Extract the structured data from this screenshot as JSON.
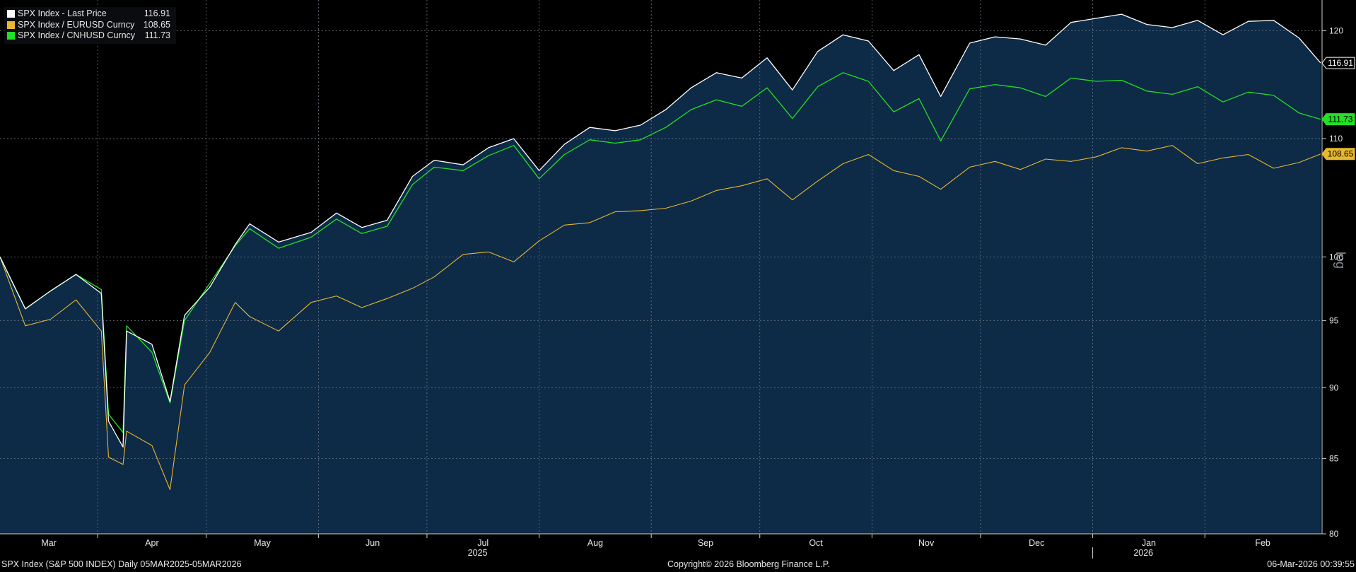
{
  "legend": [
    {
      "label": "SPX Index - Last Price",
      "value": "116.91",
      "color": "#ffffff"
    },
    {
      "label": "SPX Index / EURUSD Curncy",
      "value": "108.65",
      "color": "#e8b830"
    },
    {
      "label": "SPX Index / CNHUSD Curncy",
      "value": "111.73",
      "color": "#22e022"
    }
  ],
  "footer": {
    "left": "SPX Index (S&P 500 INDEX) Daily 05MAR2025-05MAR2026",
    "center": "Copyright© 2026 Bloomberg Finance L.P.",
    "right": "06-Mar-2026 00:39:55"
  },
  "colors": {
    "background": "#000000",
    "area_fill": "#0d2a47",
    "grid": "#6f7a86",
    "white_series": "#ffffff",
    "eur_series": "#e8b830",
    "cnh_series": "#22e022"
  },
  "chart_data": {
    "type": "line",
    "yscale": "log",
    "ylabel": "log",
    "ylim": [
      80,
      123
    ],
    "xlim": [
      "2025-03-05",
      "2026-03-05"
    ],
    "yticks": [
      80,
      85,
      90,
      95,
      100,
      110,
      120
    ],
    "x_month_ticks": [
      "Mar",
      "Apr",
      "May",
      "Jun",
      "Jul",
      "Aug",
      "Sep",
      "Oct",
      "Nov",
      "Dec",
      "Jan",
      "Feb"
    ],
    "x_month_dates": [
      "2025-03-01",
      "2025-04-01",
      "2025-05-01",
      "2025-06-01",
      "2025-07-01",
      "2025-08-01",
      "2025-09-01",
      "2025-10-01",
      "2025-11-01",
      "2025-12-01",
      "2026-01-01",
      "2026-02-01"
    ],
    "x_year_ticks": [
      "2025",
      "2026"
    ],
    "x_year_dates": [
      "2025-07-15",
      "2026-01-15"
    ],
    "grid": true,
    "legend_position": "top-left",
    "series": [
      {
        "name": "SPX Index - Last Price",
        "color": "#ffffff",
        "last_value": 116.91,
        "x": [
          "2025-03-05",
          "2025-03-12",
          "2025-03-19",
          "2025-03-26",
          "2025-04-02",
          "2025-04-04",
          "2025-04-08",
          "2025-04-09",
          "2025-04-16",
          "2025-04-21",
          "2025-04-25",
          "2025-05-02",
          "2025-05-09",
          "2025-05-13",
          "2025-05-21",
          "2025-05-30",
          "2025-06-06",
          "2025-06-13",
          "2025-06-20",
          "2025-06-27",
          "2025-07-03",
          "2025-07-11",
          "2025-07-18",
          "2025-07-25",
          "2025-08-01",
          "2025-08-08",
          "2025-08-15",
          "2025-08-22",
          "2025-08-29",
          "2025-09-05",
          "2025-09-12",
          "2025-09-19",
          "2025-09-26",
          "2025-10-03",
          "2025-10-10",
          "2025-10-17",
          "2025-10-24",
          "2025-10-31",
          "2025-11-07",
          "2025-11-14",
          "2025-11-20",
          "2025-11-28",
          "2025-12-05",
          "2025-12-12",
          "2025-12-19",
          "2025-12-26",
          "2026-01-02",
          "2026-01-09",
          "2026-01-16",
          "2026-01-23",
          "2026-01-30",
          "2026-02-06",
          "2026-02-13",
          "2026-02-20",
          "2026-02-27",
          "2026-03-05"
        ],
        "y": [
          100.0,
          95.9,
          97.3,
          98.6,
          97.1,
          87.6,
          85.8,
          94.2,
          93.2,
          89.0,
          95.4,
          97.6,
          101.0,
          102.7,
          101.2,
          102.0,
          103.6,
          102.4,
          103.0,
          106.7,
          108.1,
          107.7,
          109.2,
          110.0,
          107.2,
          109.5,
          111.0,
          110.7,
          111.2,
          112.6,
          114.6,
          116.0,
          115.5,
          117.4,
          114.4,
          118.0,
          119.6,
          119.0,
          116.2,
          117.7,
          113.8,
          118.8,
          119.4,
          119.2,
          118.6,
          120.8,
          121.2,
          121.6,
          120.6,
          120.3,
          121.0,
          119.6,
          120.9,
          121.0,
          119.3,
          116.91
        ]
      },
      {
        "name": "SPX Index / EURUSD Curncy",
        "color": "#e8b830",
        "last_value": 108.65,
        "x": [
          "2025-03-05",
          "2025-03-12",
          "2025-03-19",
          "2025-03-26",
          "2025-04-02",
          "2025-04-04",
          "2025-04-08",
          "2025-04-09",
          "2025-04-16",
          "2025-04-21",
          "2025-04-25",
          "2025-05-02",
          "2025-05-09",
          "2025-05-13",
          "2025-05-21",
          "2025-05-30",
          "2025-06-06",
          "2025-06-13",
          "2025-06-20",
          "2025-06-27",
          "2025-07-03",
          "2025-07-11",
          "2025-07-18",
          "2025-07-25",
          "2025-08-01",
          "2025-08-08",
          "2025-08-15",
          "2025-08-22",
          "2025-08-29",
          "2025-09-05",
          "2025-09-12",
          "2025-09-19",
          "2025-09-26",
          "2025-10-03",
          "2025-10-10",
          "2025-10-17",
          "2025-10-24",
          "2025-10-31",
          "2025-11-07",
          "2025-11-14",
          "2025-11-20",
          "2025-11-28",
          "2025-12-05",
          "2025-12-12",
          "2025-12-19",
          "2025-12-26",
          "2026-01-02",
          "2026-01-09",
          "2026-01-16",
          "2026-01-23",
          "2026-01-30",
          "2026-02-06",
          "2026-02-13",
          "2026-02-20",
          "2026-02-27",
          "2026-03-05"
        ],
        "y": [
          100.0,
          94.6,
          95.1,
          96.6,
          94.2,
          85.1,
          84.6,
          86.9,
          85.9,
          82.9,
          90.2,
          92.6,
          96.4,
          95.3,
          94.2,
          96.4,
          96.9,
          96.0,
          96.7,
          97.5,
          98.4,
          100.2,
          100.4,
          99.6,
          101.3,
          102.6,
          102.8,
          103.7,
          103.8,
          104.0,
          104.6,
          105.5,
          105.9,
          106.5,
          104.7,
          106.3,
          107.8,
          108.6,
          107.2,
          106.7,
          105.6,
          107.5,
          108.0,
          107.3,
          108.2,
          108.0,
          108.4,
          109.2,
          108.9,
          109.4,
          107.8,
          108.3,
          108.6,
          107.4,
          107.9,
          108.65
        ]
      },
      {
        "name": "SPX Index / CNHUSD Curncy",
        "color": "#22e022",
        "last_value": 111.73,
        "x": [
          "2025-03-05",
          "2025-03-12",
          "2025-03-19",
          "2025-03-26",
          "2025-04-02",
          "2025-04-04",
          "2025-04-08",
          "2025-04-09",
          "2025-04-16",
          "2025-04-21",
          "2025-04-25",
          "2025-05-02",
          "2025-05-09",
          "2025-05-13",
          "2025-05-21",
          "2025-05-30",
          "2025-06-06",
          "2025-06-13",
          "2025-06-20",
          "2025-06-27",
          "2025-07-03",
          "2025-07-11",
          "2025-07-18",
          "2025-07-25",
          "2025-08-01",
          "2025-08-08",
          "2025-08-15",
          "2025-08-22",
          "2025-08-29",
          "2025-09-05",
          "2025-09-12",
          "2025-09-19",
          "2025-09-26",
          "2025-10-03",
          "2025-10-10",
          "2025-10-17",
          "2025-10-24",
          "2025-10-31",
          "2025-11-07",
          "2025-11-14",
          "2025-11-20",
          "2025-11-28",
          "2025-12-05",
          "2025-12-12",
          "2025-12-19",
          "2025-12-26",
          "2026-01-02",
          "2026-01-09",
          "2026-01-16",
          "2026-01-23",
          "2026-01-30",
          "2026-02-06",
          "2026-02-13",
          "2026-02-20",
          "2026-02-27",
          "2026-03-05"
        ],
        "y": [
          100.0,
          95.9,
          97.3,
          98.6,
          97.4,
          88.1,
          86.8,
          94.6,
          92.6,
          88.9,
          95.0,
          97.9,
          100.9,
          102.3,
          100.7,
          101.6,
          103.1,
          101.9,
          102.5,
          106.0,
          107.5,
          107.2,
          108.5,
          109.4,
          106.5,
          108.6,
          109.9,
          109.6,
          109.9,
          111.0,
          112.6,
          113.5,
          112.9,
          114.6,
          111.8,
          114.7,
          116.0,
          115.2,
          112.4,
          113.6,
          109.8,
          114.5,
          114.9,
          114.6,
          113.8,
          115.5,
          115.2,
          115.3,
          114.3,
          114.0,
          114.7,
          113.3,
          114.2,
          113.9,
          112.3,
          111.73
        ]
      }
    ]
  }
}
